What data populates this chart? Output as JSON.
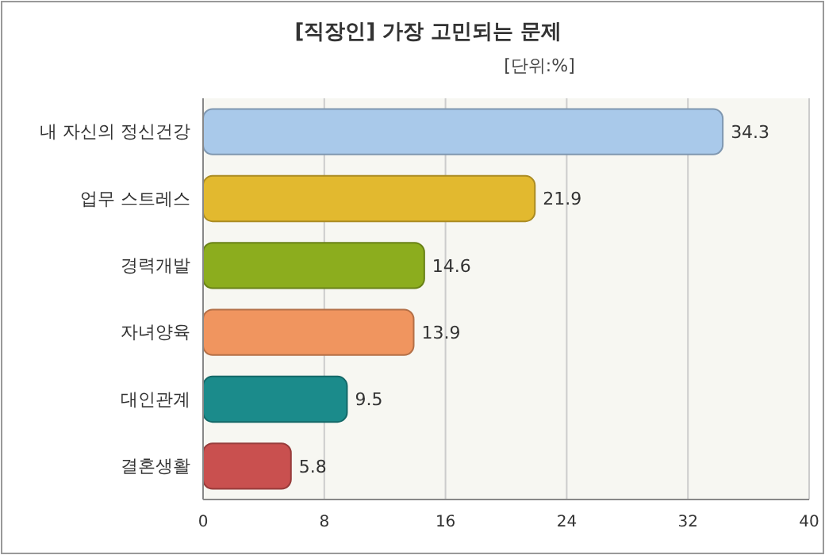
{
  "chart_data": {
    "type": "bar",
    "orientation": "horizontal",
    "title": "[직장인] 가장 고민되는 문제",
    "subtitle": "[단위:%]",
    "categories": [
      "내 자신의 정신건강",
      "업무 스트레스",
      "경력개발",
      "자녀양육",
      "대인관계",
      "결혼생활"
    ],
    "values": [
      34.3,
      21.9,
      14.6,
      13.9,
      9.5,
      5.8
    ],
    "colors": [
      "#a9c9ea",
      "#e2b92f",
      "#8cad1e",
      "#f0955f",
      "#1b8b8b",
      "#c9504f"
    ],
    "xlim": [
      0,
      40
    ],
    "xticks": [
      0,
      8,
      16,
      24,
      32,
      40
    ],
    "grid": "x",
    "data_labels": true
  }
}
